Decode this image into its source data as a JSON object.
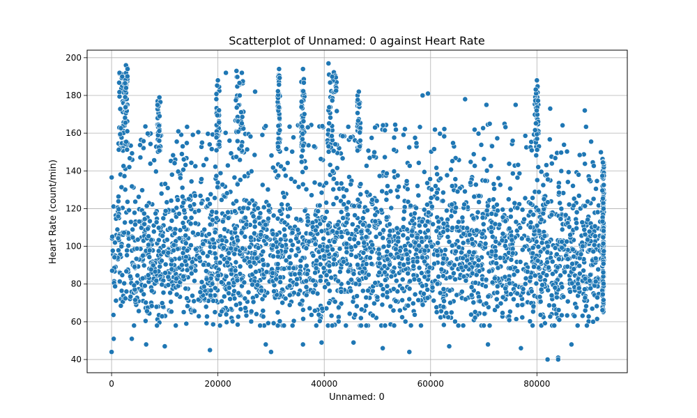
{
  "chart_data": {
    "type": "scatter",
    "title": "Scatterplot of Unnamed: 0 against Heart Rate",
    "xlabel": "Unnamed: 0",
    "ylabel": "Heart Rate (count/min)",
    "xlim": [
      -4600,
      97000
    ],
    "ylim": [
      33,
      204
    ],
    "x_ticks": [
      0,
      20000,
      40000,
      60000,
      80000
    ],
    "y_ticks": [
      40,
      60,
      80,
      100,
      120,
      140,
      160,
      180,
      200
    ],
    "grid": true,
    "color": "#1f77b4",
    "x_range": [
      0,
      92500
    ],
    "y_bulk_range": [
      62,
      165
    ],
    "outliers": [
      {
        "x": 0,
        "y": 44
      },
      {
        "x": 400,
        "y": 51
      },
      {
        "x": 1500,
        "y": 192
      },
      {
        "x": 2000,
        "y": 190
      },
      {
        "x": 2700,
        "y": 196
      },
      {
        "x": 3000,
        "y": 194
      },
      {
        "x": 3800,
        "y": 51
      },
      {
        "x": 6500,
        "y": 48
      },
      {
        "x": 9000,
        "y": 179
      },
      {
        "x": 10000,
        "y": 47
      },
      {
        "x": 18500,
        "y": 45
      },
      {
        "x": 20000,
        "y": 188
      },
      {
        "x": 21500,
        "y": 192
      },
      {
        "x": 23500,
        "y": 193
      },
      {
        "x": 24500,
        "y": 192
      },
      {
        "x": 27000,
        "y": 182
      },
      {
        "x": 29000,
        "y": 48
      },
      {
        "x": 30000,
        "y": 44
      },
      {
        "x": 31500,
        "y": 194
      },
      {
        "x": 36000,
        "y": 194
      },
      {
        "x": 36000,
        "y": 48
      },
      {
        "x": 39500,
        "y": 49
      },
      {
        "x": 40800,
        "y": 197
      },
      {
        "x": 41500,
        "y": 190
      },
      {
        "x": 45500,
        "y": 49
      },
      {
        "x": 46500,
        "y": 182
      },
      {
        "x": 51000,
        "y": 46
      },
      {
        "x": 56000,
        "y": 44
      },
      {
        "x": 58500,
        "y": 180
      },
      {
        "x": 59500,
        "y": 181
      },
      {
        "x": 63500,
        "y": 47
      },
      {
        "x": 66500,
        "y": 178
      },
      {
        "x": 70500,
        "y": 175
      },
      {
        "x": 70800,
        "y": 48
      },
      {
        "x": 76000,
        "y": 175
      },
      {
        "x": 77000,
        "y": 46
      },
      {
        "x": 80000,
        "y": 188
      },
      {
        "x": 82000,
        "y": 40
      },
      {
        "x": 82500,
        "y": 173
      },
      {
        "x": 84000,
        "y": 41
      },
      {
        "x": 84000,
        "y": 40
      },
      {
        "x": 86500,
        "y": 48
      },
      {
        "x": 89000,
        "y": 172
      }
    ],
    "spikes": [
      {
        "x_from": 1300,
        "x_to": 2400,
        "y_top": 193
      },
      {
        "x_from": 2500,
        "x_to": 3000,
        "y_top": 195
      },
      {
        "x_from": 8600,
        "x_to": 9200,
        "y_top": 178
      },
      {
        "x_from": 19700,
        "x_to": 20300,
        "y_top": 186
      },
      {
        "x_from": 23300,
        "x_to": 24800,
        "y_top": 190
      },
      {
        "x_from": 31200,
        "x_to": 31700,
        "y_top": 191
      },
      {
        "x_from": 35700,
        "x_to": 36300,
        "y_top": 191
      },
      {
        "x_from": 40400,
        "x_to": 42400,
        "y_top": 194
      },
      {
        "x_from": 46200,
        "x_to": 46800,
        "y_top": 180
      },
      {
        "x_from": 79600,
        "x_to": 80400,
        "y_top": 185
      }
    ],
    "point_count": 3000,
    "seed": 12345
  }
}
